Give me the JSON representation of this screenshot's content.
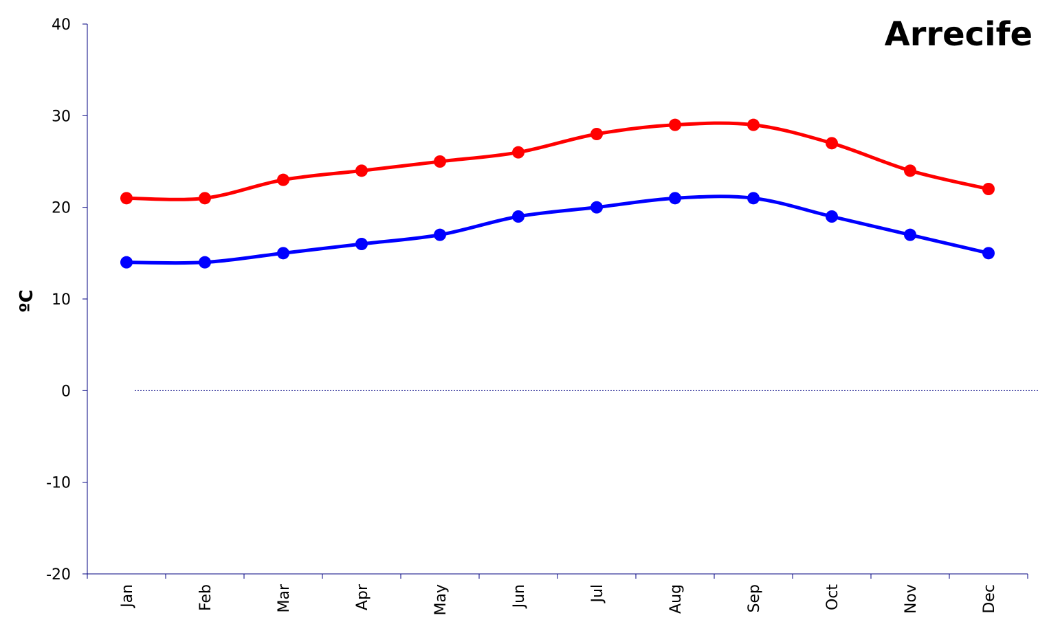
{
  "chart_data": {
    "type": "line",
    "title": "Arrecife",
    "xlabel": "",
    "ylabel": "ºC",
    "categories": [
      "Jan",
      "Feb",
      "Mar",
      "Apr",
      "May",
      "Jun",
      "Jul",
      "Aug",
      "Sep",
      "Oct",
      "Nov",
      "Dec"
    ],
    "ylim": [
      -20,
      40
    ],
    "yticks": [
      "40",
      "30",
      "20",
      "10",
      "0",
      "-10",
      "-20"
    ],
    "grid": false,
    "zero_reference_line": "dotted",
    "smoothed": true,
    "legend": "none",
    "series": [
      {
        "color": "#ff0000",
        "marker": "circle",
        "values": [
          21,
          21,
          23,
          24,
          25,
          26,
          28,
          29,
          29,
          27,
          24,
          22
        ]
      },
      {
        "color": "#0000ff",
        "marker": "circle",
        "values": [
          14,
          14,
          15,
          16,
          17,
          19,
          20,
          21,
          21,
          19,
          17,
          15
        ]
      }
    ]
  }
}
